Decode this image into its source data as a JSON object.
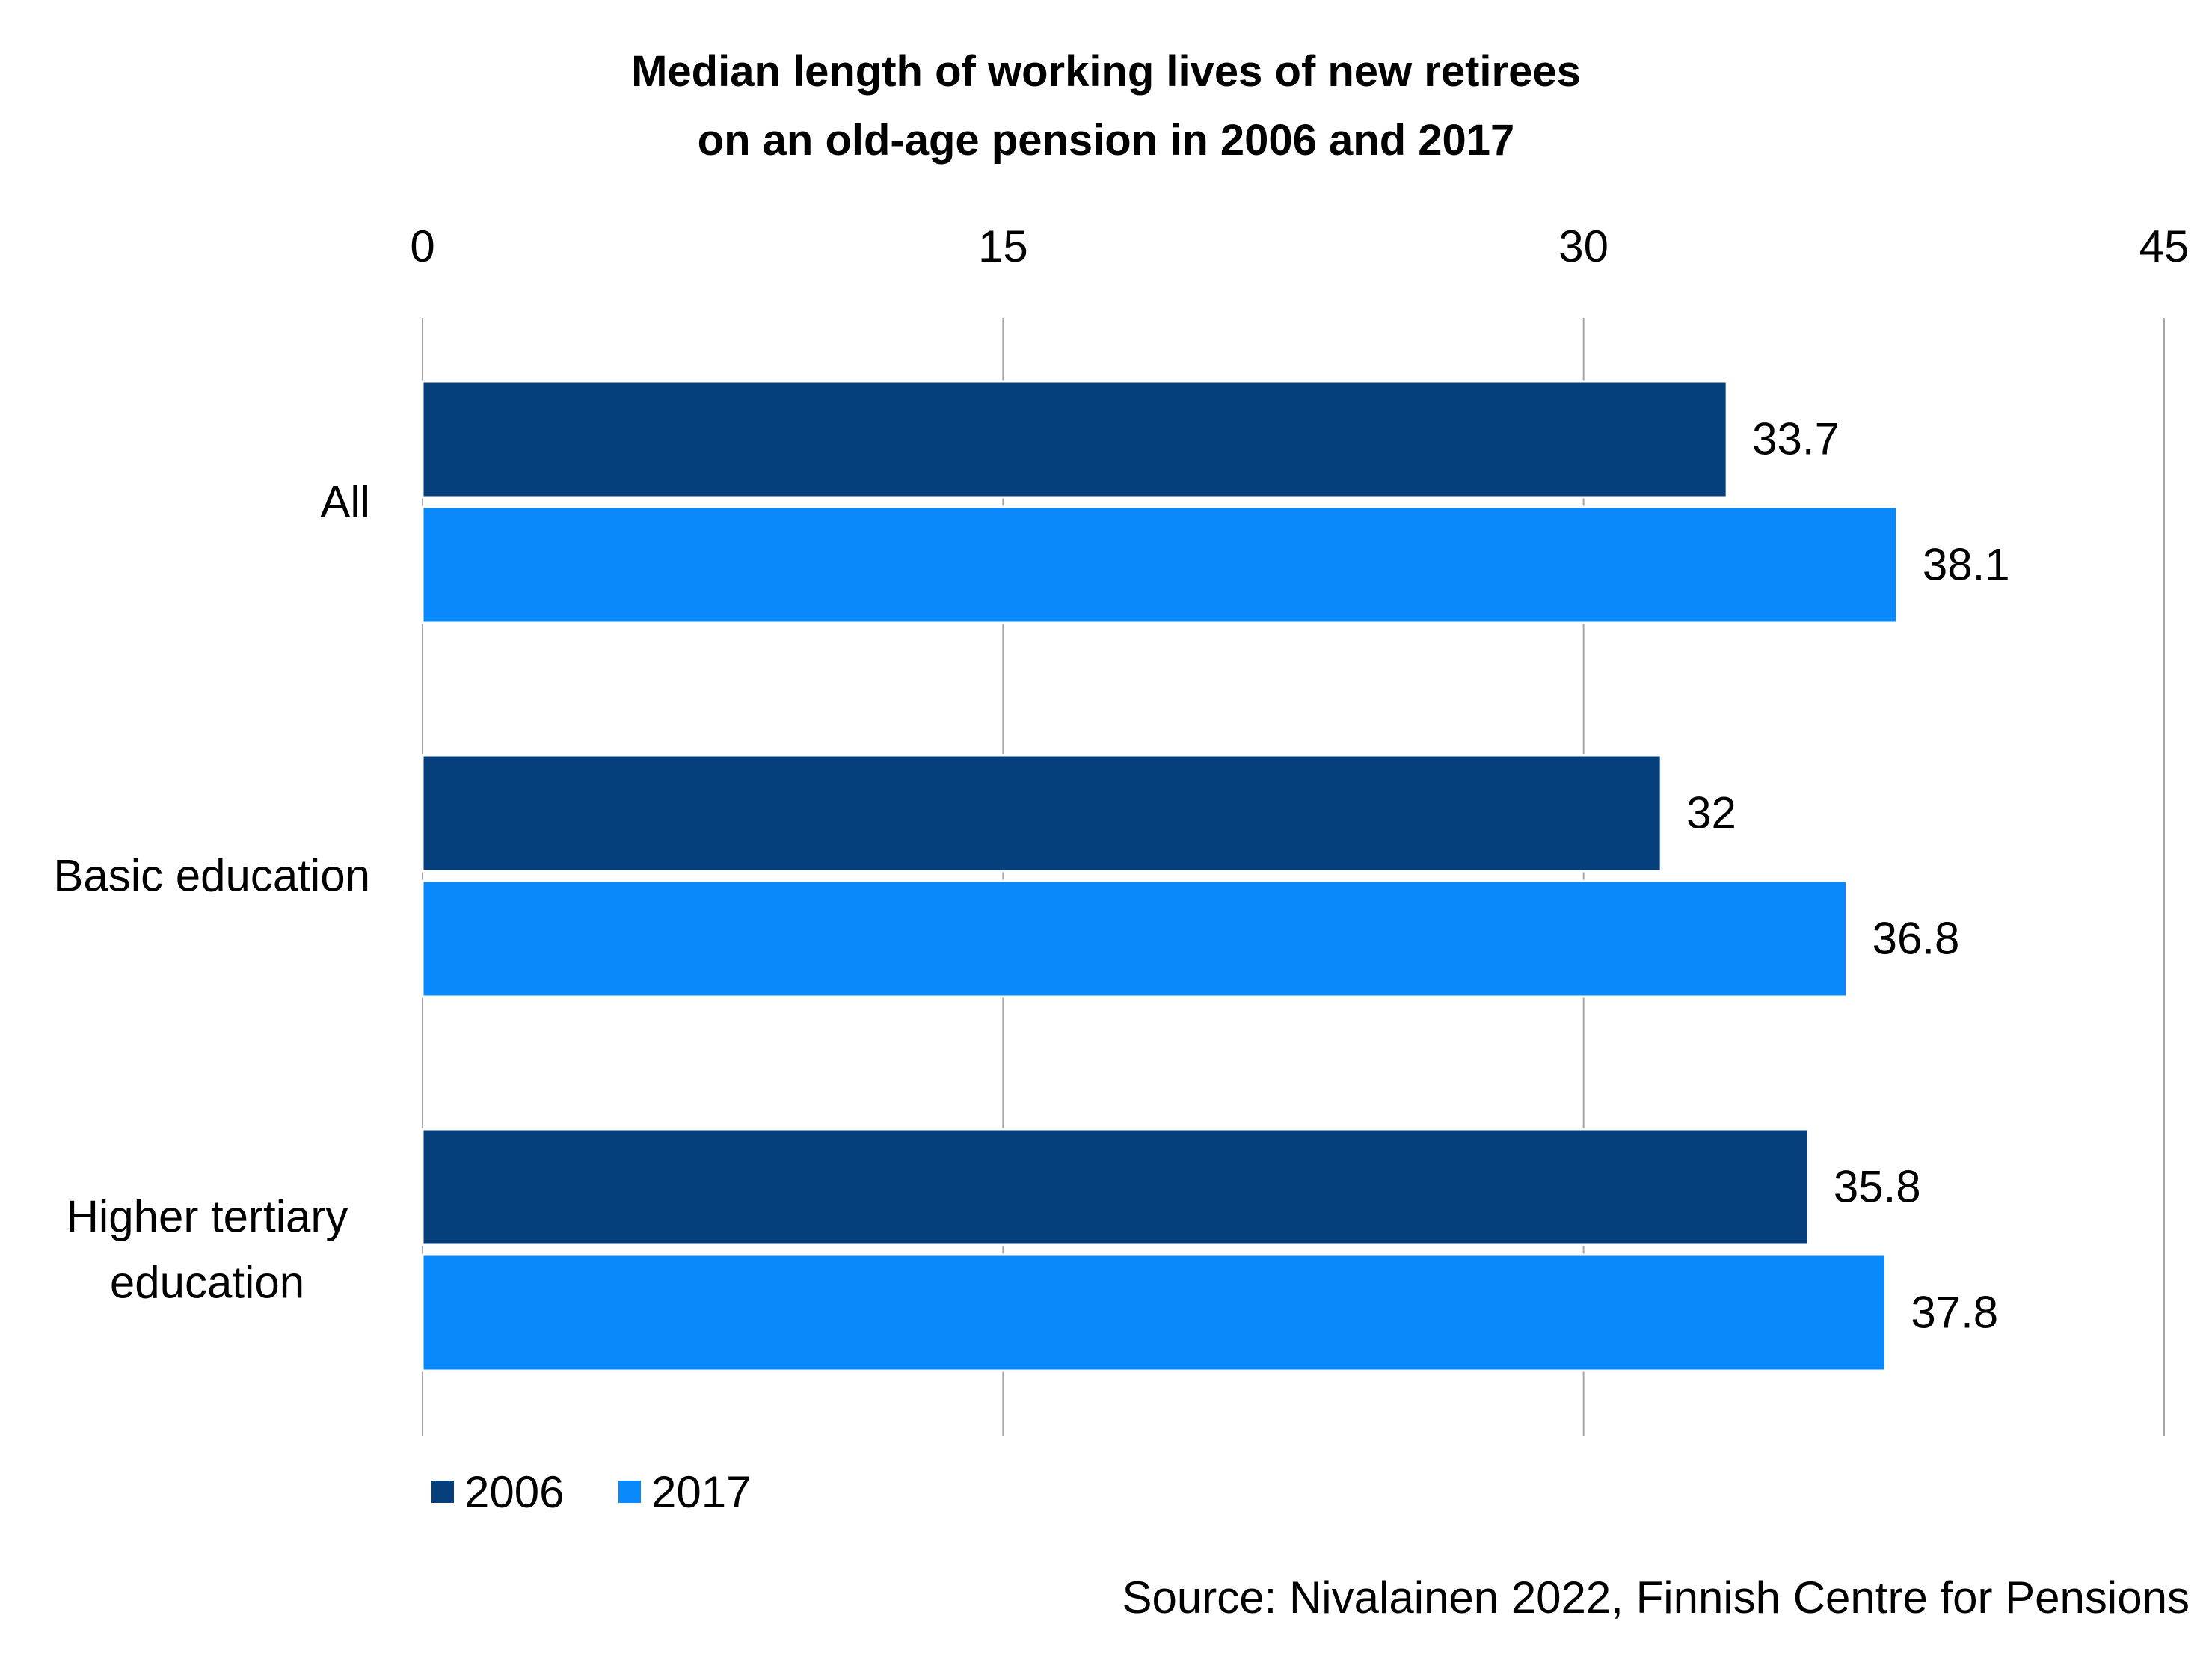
{
  "chart_data": {
    "type": "bar",
    "orientation": "horizontal",
    "title": "Median length of working lives of new retirees on an old-age pension in 2006 and 2017",
    "title_lines": [
      "Median length of working lives of new retirees",
      "on an old-age pension in 2006 and 2017"
    ],
    "categories": [
      "All",
      "Basic education",
      "Higher tertiary education"
    ],
    "category_lines": [
      [
        "All"
      ],
      [
        "Basic education"
      ],
      [
        "Higher tertiary",
        "education"
      ]
    ],
    "series": [
      {
        "name": "2006",
        "color": "#053f7c",
        "values": [
          33.7,
          32,
          35.8
        ],
        "labels": [
          "33.7",
          "32",
          "35.8"
        ]
      },
      {
        "name": "2017",
        "color": "#0a89fc",
        "values": [
          38.1,
          36.8,
          37.8
        ],
        "labels": [
          "38.1",
          "36.8",
          "37.8"
        ]
      }
    ],
    "xaxis": {
      "range": [
        0,
        45
      ],
      "ticks": [
        0,
        15,
        30,
        45
      ],
      "tick_labels": [
        "0",
        "15",
        "30",
        "45"
      ],
      "position": "top"
    },
    "grid": true,
    "legend": "bottom-left",
    "source": "Source: Nivalainen 2022, Finnish Centre for Pensions"
  }
}
